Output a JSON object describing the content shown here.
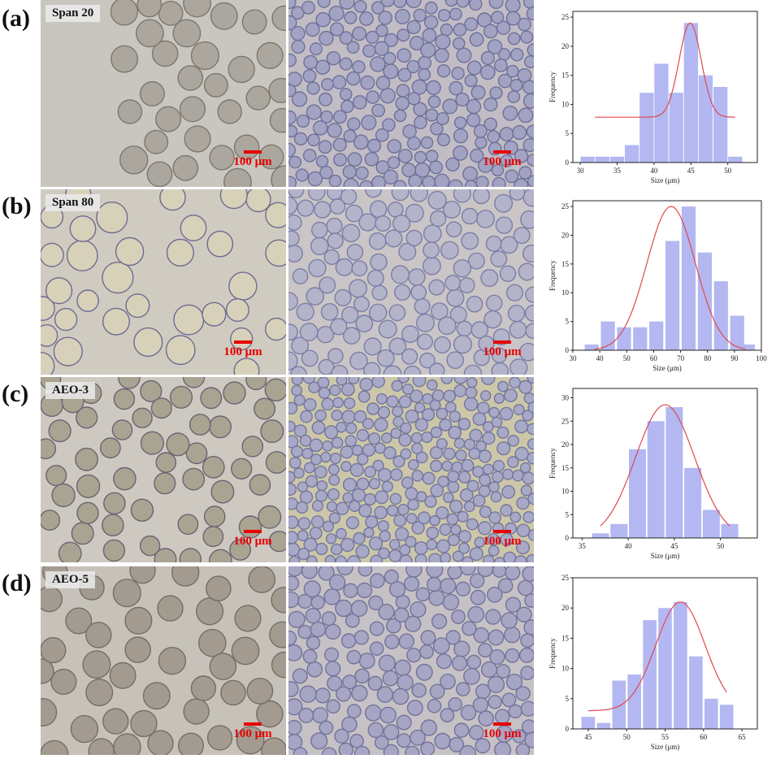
{
  "colors": {
    "bar": "#b3b8f2",
    "fit": "#e0484e",
    "scale": "#e60000"
  },
  "scale_label": "100 μm",
  "chart_data": [
    {
      "type": "bar",
      "panel": "(a)",
      "surfactant": "Span 20",
      "xlabel": "Size (μm)",
      "ylabel": "Frequency",
      "xlim": [
        29,
        54
      ],
      "ylim": [
        0,
        26
      ],
      "xticks": [
        30,
        35,
        40,
        45,
        50
      ],
      "yticks": [
        0,
        5,
        10,
        15,
        20,
        25
      ],
      "bin_width": 1.9,
      "x": [
        31,
        33,
        35,
        37,
        39,
        41,
        43,
        45,
        47,
        49,
        51
      ],
      "values": [
        1,
        1,
        1,
        3,
        12,
        17,
        12,
        24,
        15,
        13,
        1
      ],
      "fit": {
        "base": 7.8,
        "amp": 16.2,
        "mu": 44.9,
        "sigma": 1.5,
        "range": [
          32,
          51
        ]
      }
    },
    {
      "type": "bar",
      "panel": "(b)",
      "surfactant": "Span 80",
      "xlabel": "Size (μm)",
      "ylabel": "Frequency",
      "xlim": [
        30,
        100
      ],
      "ylim": [
        0,
        26
      ],
      "xticks": [
        30,
        40,
        50,
        60,
        70,
        80,
        90,
        100
      ],
      "yticks": [
        0,
        5,
        10,
        15,
        20,
        25
      ],
      "bin_width": 5.2,
      "x": [
        37,
        43,
        49,
        55,
        61,
        67,
        73,
        79,
        85,
        91,
        95
      ],
      "values": [
        1,
        5,
        4,
        4,
        5,
        19,
        25,
        17,
        12,
        6,
        1
      ],
      "fit": {
        "base": 0,
        "amp": 25,
        "mu": 66.5,
        "sigma": 9,
        "range": [
          38,
          94
        ]
      }
    },
    {
      "type": "bar",
      "panel": "(c)",
      "surfactant": "AEO-3",
      "xlabel": "Size (μm)",
      "ylabel": "Frequency",
      "xlim": [
        34,
        54
      ],
      "ylim": [
        0,
        32
      ],
      "xticks": [
        35,
        40,
        45,
        50
      ],
      "yticks": [
        0,
        5,
        10,
        15,
        20,
        25,
        30
      ],
      "bin_width": 1.85,
      "x": [
        37,
        39,
        41,
        43,
        45,
        47,
        49,
        51
      ],
      "values": [
        1,
        3,
        19,
        25,
        28,
        15,
        6,
        3
      ],
      "fit": {
        "base": 0,
        "amp": 28.5,
        "mu": 44,
        "sigma": 3.2,
        "range": [
          37,
          51
        ]
      }
    },
    {
      "type": "bar",
      "panel": "(d)",
      "surfactant": "AEO-5",
      "xlabel": "Size (μm)",
      "ylabel": "Frequency",
      "xlim": [
        43,
        67
      ],
      "ylim": [
        0,
        25
      ],
      "xticks": [
        45,
        50,
        55,
        60,
        65
      ],
      "yticks": [
        0,
        5,
        10,
        15,
        20,
        25
      ],
      "bin_width": 1.75,
      "x": [
        45,
        47,
        49,
        51,
        53,
        55,
        57,
        59,
        61,
        63
      ],
      "values": [
        2,
        1,
        8,
        9,
        18,
        20,
        21,
        12,
        5,
        4
      ],
      "fit": {
        "base": 3,
        "amp": 18,
        "mu": 57,
        "sigma": 3.2,
        "range": [
          45,
          63
        ]
      }
    }
  ]
}
